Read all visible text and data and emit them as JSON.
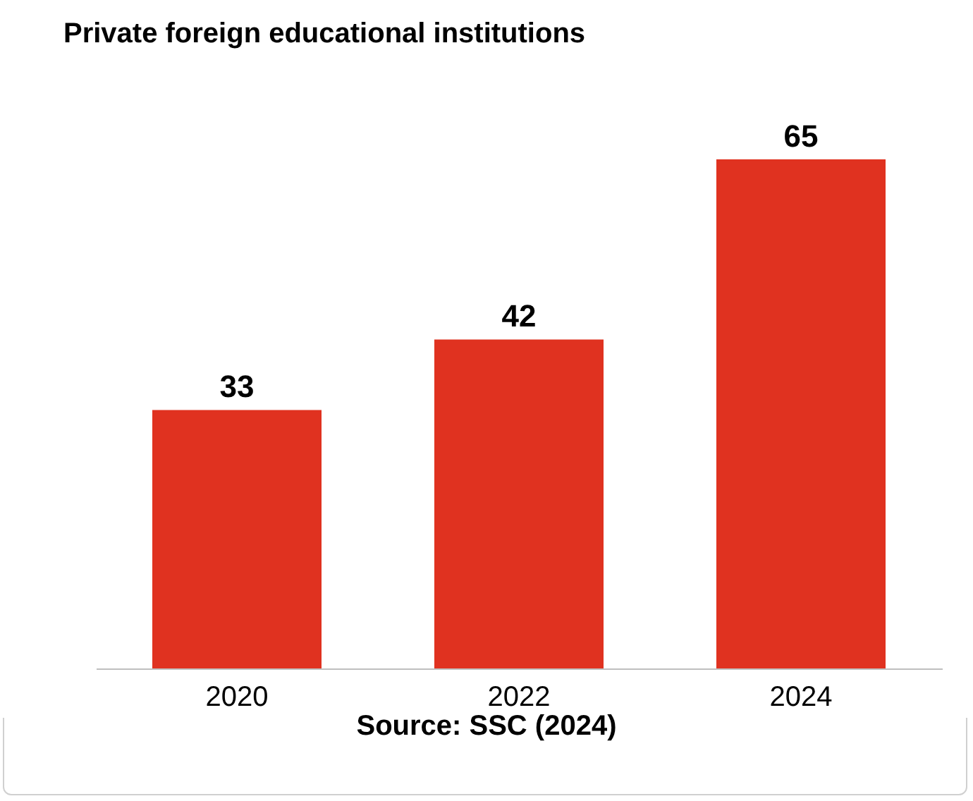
{
  "chart_data": {
    "type": "bar",
    "title": "Private foreign educational institutions",
    "categories": [
      "2020",
      "2022",
      "2024"
    ],
    "values": [
      33,
      42,
      65
    ],
    "color": "#e03220",
    "data_labels": true,
    "grid": false,
    "tick_labels": "x",
    "annotations": [
      "Source: SSC (2024)"
    ]
  }
}
